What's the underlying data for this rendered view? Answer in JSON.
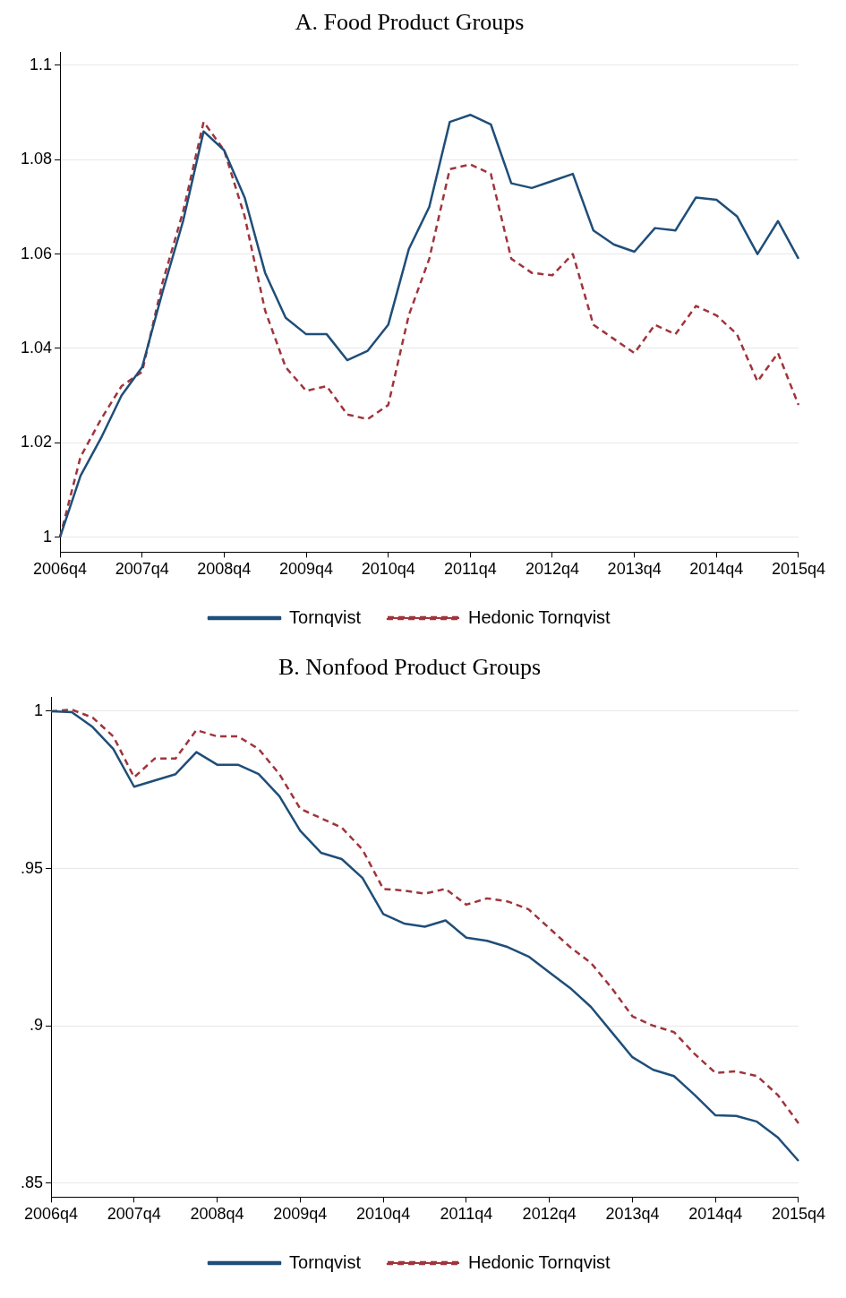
{
  "chart_data": [
    {
      "type": "line",
      "title": "A. Food Product Groups",
      "categories": [
        "2006q4",
        null,
        null,
        null,
        "2007q4",
        null,
        null,
        null,
        "2008q4",
        null,
        null,
        null,
        "2009q4",
        null,
        null,
        null,
        "2010q4",
        null,
        null,
        null,
        "2011q4",
        null,
        null,
        null,
        "2012q4",
        null,
        null,
        null,
        "2013q4",
        null,
        null,
        null,
        "2014q4",
        null,
        null,
        null,
        "2015q4"
      ],
      "series": [
        {
          "name": "Tornqvist",
          "color": "#1f4e79",
          "line_style": "solid",
          "values": [
            1.0,
            1.013,
            1.021,
            1.03,
            1.036,
            1.052,
            1.067,
            1.086,
            1.082,
            1.072,
            1.056,
            1.0465,
            1.043,
            1.043,
            1.0375,
            1.0395,
            1.045,
            1.061,
            1.07,
            1.088,
            1.0895,
            1.0875,
            1.075,
            1.074,
            1.0755,
            1.077,
            1.065,
            1.062,
            1.0605,
            1.0655,
            1.065,
            1.072,
            1.0715,
            1.068,
            1.06,
            1.067,
            1.059
          ]
        },
        {
          "name": "Hedonic Tornqvist",
          "color": "#a0343c",
          "line_style": "dashed",
          "values": [
            1.0,
            1.017,
            1.025,
            1.032,
            1.035,
            1.054,
            1.069,
            1.088,
            1.082,
            1.068,
            1.048,
            1.036,
            1.031,
            1.032,
            1.026,
            1.025,
            1.028,
            1.047,
            1.059,
            1.078,
            1.079,
            1.077,
            1.059,
            1.056,
            1.0555,
            1.06,
            1.045,
            1.042,
            1.039,
            1.045,
            1.043,
            1.049,
            1.047,
            1.043,
            1.033,
            1.039,
            1.028
          ]
        }
      ],
      "ylim": [
        0.9968,
        1.1028
      ],
      "yticks": [
        1,
        1.02,
        1.04,
        1.06,
        1.08,
        1.1
      ],
      "grid": "y",
      "legend": "bottom",
      "marker": "none"
    },
    {
      "type": "line",
      "title": "B. Nonfood Product Groups",
      "categories": [
        "2006q4",
        null,
        null,
        null,
        "2007q4",
        null,
        null,
        null,
        "2008q4",
        null,
        null,
        null,
        "2009q4",
        null,
        null,
        null,
        "2010q4",
        null,
        null,
        null,
        "2011q4",
        null,
        null,
        null,
        "2012q4",
        null,
        null,
        null,
        "2013q4",
        null,
        null,
        null,
        "2014q4",
        null,
        null,
        null,
        "2015q4"
      ],
      "series": [
        {
          "name": "Tornqvist",
          "color": "#1f4e79",
          "line_style": "solid",
          "values": [
            1.0,
            0.9997,
            0.995,
            0.988,
            0.976,
            0.978,
            0.98,
            0.987,
            0.983,
            0.983,
            0.98,
            0.973,
            0.962,
            0.955,
            0.953,
            0.947,
            0.9355,
            0.9325,
            0.9315,
            0.9335,
            0.928,
            0.927,
            0.925,
            0.922,
            0.917,
            0.912,
            0.906,
            0.898,
            0.89,
            0.886,
            0.884,
            0.878,
            0.8715,
            0.8713,
            0.8695,
            0.8645,
            0.857
          ]
        },
        {
          "name": "Hedonic Tornqvist",
          "color": "#a0343c",
          "line_style": "dashed",
          "values": [
            1.0,
            1.0005,
            0.998,
            0.992,
            0.979,
            0.985,
            0.985,
            0.994,
            0.992,
            0.992,
            0.988,
            0.98,
            0.969,
            0.966,
            0.963,
            0.956,
            0.9435,
            0.943,
            0.942,
            0.9435,
            0.9385,
            0.9405,
            0.9395,
            0.937,
            0.931,
            0.925,
            0.92,
            0.912,
            0.903,
            0.9,
            0.898,
            0.891,
            0.885,
            0.8855,
            0.884,
            0.878,
            0.869
          ]
        }
      ],
      "ylim": [
        0.8455,
        1.0045
      ],
      "yticks": [
        {
          "value": 0.85,
          "label": ".85"
        },
        {
          "value": 0.9,
          "label": ".9"
        },
        {
          "value": 0.95,
          "label": ".95"
        },
        1
      ],
      "grid": "y",
      "legend": "bottom",
      "marker": "none"
    }
  ]
}
